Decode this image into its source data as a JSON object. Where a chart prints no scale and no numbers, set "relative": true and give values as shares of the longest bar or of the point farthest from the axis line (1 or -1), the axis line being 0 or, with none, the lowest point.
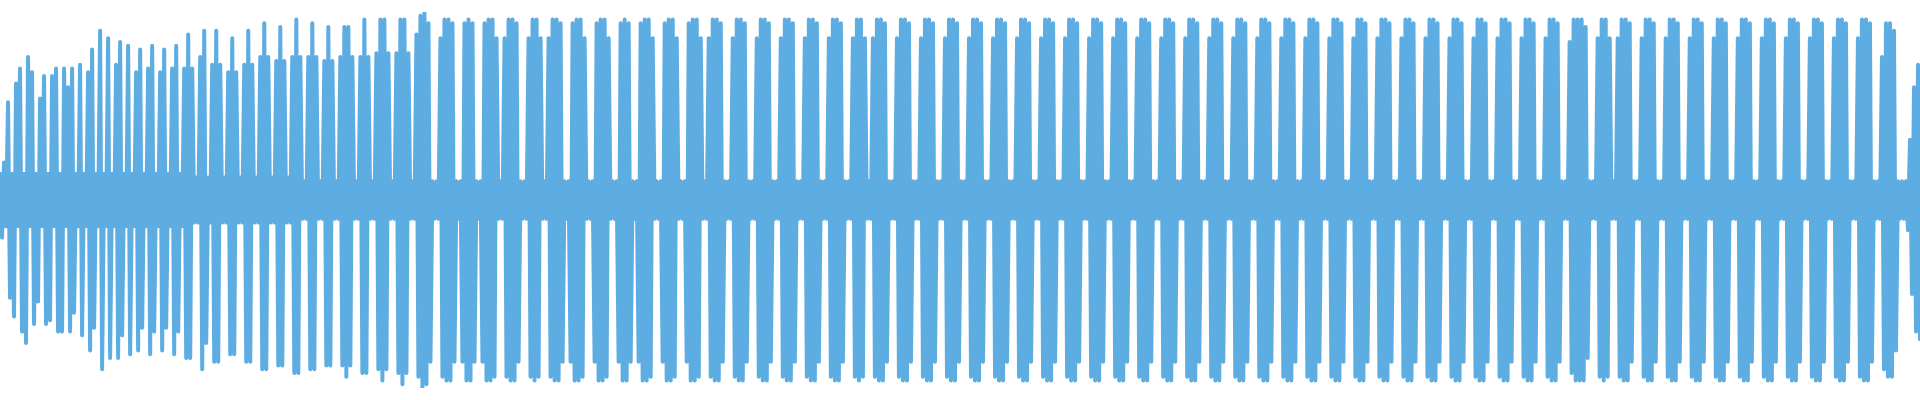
{
  "chart_data": {
    "type": "line",
    "relative": true,
    "color": "#5dade2",
    "categories": [
      null,
      null,
      null,
      null,
      null,
      null,
      null,
      null,
      null,
      null,
      null,
      null,
      null,
      null,
      null,
      null,
      null,
      null,
      null,
      null,
      null,
      null,
      null,
      null,
      null,
      null,
      null,
      null,
      null,
      null,
      null,
      null,
      null,
      null,
      null,
      null,
      null,
      null,
      null,
      null,
      null,
      null,
      null,
      null,
      null,
      null,
      null,
      null,
      null,
      null,
      null,
      null,
      null,
      null,
      null,
      null,
      null,
      null,
      null,
      null,
      null,
      null,
      null,
      null,
      null,
      null,
      null,
      null,
      null,
      null,
      null,
      null,
      null,
      null,
      null,
      null,
      null,
      null,
      null,
      null,
      null,
      null,
      null,
      null,
      null,
      null,
      null,
      null,
      null,
      null,
      null,
      null,
      null,
      null,
      null,
      null,
      null,
      null,
      null,
      null,
      null,
      null,
      null,
      null,
      null,
      null,
      null,
      null,
      null,
      null,
      null,
      null,
      null,
      null,
      null,
      null,
      null,
      null,
      null,
      null,
      null,
      null,
      null,
      null,
      null,
      null,
      null,
      null,
      null,
      null,
      null,
      null,
      null,
      null,
      null,
      null,
      null,
      null,
      null,
      null,
      null,
      null,
      null,
      null,
      null,
      null,
      null,
      null,
      null,
      null,
      null,
      null,
      null,
      null,
      null,
      null,
      null,
      null,
      null,
      null,
      null,
      null,
      null,
      null,
      null,
      null,
      null,
      null,
      null,
      null,
      null,
      null,
      null,
      null,
      null,
      null,
      null,
      null,
      null,
      null,
      null,
      null,
      null,
      null,
      null,
      null,
      null,
      null,
      null,
      null,
      null,
      null,
      null,
      null,
      null,
      null,
      null,
      null,
      null,
      null,
      null,
      null,
      null,
      null,
      null,
      null,
      null,
      null,
      null,
      null,
      null,
      null,
      null,
      null,
      null,
      null,
      null,
      null,
      null,
      null,
      null,
      null,
      null,
      null,
      null,
      null,
      null,
      null,
      null,
      null,
      null,
      null,
      null,
      null,
      null,
      null,
      null,
      null,
      null,
      null,
      null,
      null,
      null,
      null,
      null,
      null,
      null,
      null,
      null,
      null,
      null,
      null,
      null,
      null,
      null,
      null,
      null,
      null,
      null,
      null,
      null,
      null,
      null,
      null,
      null,
      null,
      null,
      null,
      null,
      null,
      null,
      null,
      null,
      null,
      null,
      null,
      null,
      null,
      null,
      null,
      null,
      null,
      null,
      null,
      null,
      null,
      null,
      null,
      null,
      null,
      null,
      null,
      null,
      null,
      null,
      null,
      null,
      null,
      null,
      null,
      null,
      null,
      null,
      null,
      null,
      null,
      null,
      null,
      null,
      null,
      null,
      null,
      null,
      null,
      null,
      null,
      null,
      null,
      null,
      null,
      null,
      null,
      null,
      null,
      null,
      null,
      null,
      null,
      null,
      null,
      null,
      null,
      null,
      null,
      null,
      null,
      null,
      null,
      null,
      null,
      null,
      null,
      null,
      null,
      null,
      null,
      null,
      null,
      null,
      null,
      null,
      null,
      null,
      null,
      null,
      null,
      null,
      null,
      null,
      null,
      null,
      null,
      null,
      null,
      null,
      null,
      null,
      null,
      null,
      null,
      null,
      null,
      null,
      null,
      null,
      null,
      null,
      null,
      null,
      null,
      null,
      null,
      null,
      null,
      null,
      null,
      null,
      null,
      null,
      null,
      null,
      null,
      null,
      null,
      null,
      null,
      null,
      null,
      null,
      null,
      null,
      null,
      null,
      null,
      null,
      null,
      null,
      null,
      null,
      null,
      null,
      null,
      null,
      null,
      null,
      null,
      null,
      null,
      null,
      null,
      null,
      null,
      null,
      null,
      null,
      null,
      null,
      null,
      null,
      null,
      null,
      null,
      null,
      null,
      null,
      null,
      null,
      null,
      null,
      null,
      null,
      null,
      null,
      null,
      null,
      null,
      null,
      null,
      null,
      null,
      null,
      null,
      null,
      null,
      null,
      null,
      null,
      null,
      null,
      null,
      null,
      null,
      null,
      null,
      null,
      null,
      null,
      null,
      null,
      null,
      null,
      null,
      null,
      null,
      null,
      null,
      null,
      null,
      null,
      null,
      null,
      null,
      null,
      null,
      null,
      null,
      null,
      null,
      null,
      null,
      null,
      null,
      null,
      null,
      null,
      null,
      null,
      null,
      null,
      null,
      null,
      null,
      null,
      null,
      null,
      null,
      null,
      null,
      null,
      null,
      null,
      null,
      null,
      null,
      null,
      null,
      null,
      null,
      null,
      null,
      null,
      null,
      null,
      null,
      null,
      null,
      null,
      null,
      null,
      null,
      null,
      null,
      null,
      null,
      null,
      null,
      null,
      null,
      null,
      null,
      null,
      null,
      null,
      null,
      null,
      null,
      null,
      null,
      null,
      null,
      null,
      null,
      null,
      null,
      null,
      null,
      null,
      null,
      null,
      null,
      null,
      null,
      null,
      null,
      null,
      null,
      null,
      null,
      null,
      null,
      null,
      null,
      null,
      null,
      null,
      null,
      null,
      null,
      null,
      null,
      null,
      null,
      null,
      null,
      null,
      null,
      null,
      null,
      null,
      null,
      null,
      null,
      null,
      null,
      null,
      null,
      null,
      null,
      null,
      null,
      null,
      null,
      null,
      null,
      null,
      null,
      null,
      null,
      null,
      null,
      null,
      null,
      null,
      null,
      null,
      null,
      null,
      null,
      null,
      null,
      null,
      null,
      null,
      null,
      null,
      null,
      null,
      null,
      null,
      null,
      null,
      null,
      null,
      null,
      null,
      null,
      null,
      null,
      null,
      null,
      null,
      null,
      null,
      null,
      null,
      null,
      null,
      null,
      null,
      null,
      null,
      null,
      null,
      null,
      null,
      null,
      null,
      null,
      null,
      null,
      null,
      null,
      null,
      null,
      null,
      null,
      null,
      null,
      null,
      null,
      null,
      null,
      null,
      null,
      null,
      null,
      null,
      null,
      null,
      null,
      null,
      null,
      null,
      null,
      null,
      null,
      null,
      null,
      null,
      null,
      null,
      null,
      null,
      null,
      null,
      null,
      null,
      null,
      null,
      null,
      null,
      null,
      null,
      null,
      null,
      null,
      null,
      null,
      null,
      null,
      null,
      null,
      null,
      null,
      null,
      null,
      null,
      null,
      null,
      null,
      null,
      null,
      null,
      null,
      null,
      null,
      null,
      null,
      null,
      null,
      null,
      null,
      null,
      null,
      null,
      null,
      null,
      null,
      null,
      null,
      null,
      null,
      null,
      null,
      null,
      null,
      null,
      null,
      null,
      null,
      null,
      null,
      null,
      null,
      null,
      null,
      null,
      null,
      null,
      null,
      null,
      null,
      null,
      null,
      null,
      null,
      null,
      null,
      null,
      null,
      null,
      null,
      null,
      null,
      null,
      null,
      null,
      null,
      null,
      null,
      null,
      null,
      null,
      null,
      null,
      null,
      null,
      null,
      null,
      null,
      null,
      null,
      null,
      null,
      null,
      null,
      null,
      null,
      null,
      null,
      null,
      null,
      null,
      null,
      null,
      null,
      null,
      null,
      null,
      null,
      null,
      null,
      null,
      null,
      null,
      null,
      null,
      null,
      null,
      null,
      null,
      null,
      null,
      null,
      null,
      null,
      null,
      null,
      null,
      null,
      null,
      null,
      null,
      null,
      null,
      null,
      null,
      null,
      null,
      null,
      null,
      null,
      null,
      null,
      null,
      null,
      null,
      null,
      null,
      null,
      null,
      null,
      null,
      null,
      null,
      null,
      null,
      null,
      null,
      null,
      null,
      null,
      null,
      null,
      null,
      null,
      null,
      null,
      null,
      null,
      null,
      null,
      null,
      null,
      null,
      null,
      null,
      null,
      null,
      null,
      null,
      null,
      null,
      null,
      null,
      null,
      null,
      null,
      null,
      null,
      null,
      null,
      null,
      null,
      null,
      null,
      null,
      null,
      null,
      null,
      null,
      null,
      null,
      null,
      null,
      null,
      null,
      null,
      null,
      null,
      null,
      null,
      null,
      null,
      null,
      null,
      null,
      null,
      null,
      null,
      null,
      null,
      null,
      null,
      null,
      null,
      null,
      null,
      null,
      null,
      null,
      null,
      null,
      null,
      null,
      null,
      null,
      null,
      null,
      null,
      null,
      null,
      null,
      null,
      null,
      null,
      null,
      null,
      null,
      null,
      null,
      null,
      null,
      null,
      null,
      null,
      null,
      null,
      null,
      null
    ],
    "values": [
      0.57,
      0.4,
      0.6,
      0.43,
      0.76,
      0.24,
      0.57,
      0.19,
      0.81,
      0.43,
      0.85,
      0.15,
      0.57,
      0.12,
      0.88,
      0.43,
      0.84,
      0.17,
      0.57,
      0.23,
      0.77,
      0.43,
      0.83,
      0.17,
      0.57,
      0.18,
      0.83,
      0.43,
      0.85,
      0.15,
      0.57,
      0.15,
      0.85,
      0.43,
      0.8,
      0.15,
      0.85,
      0.2,
      0.57,
      0.43,
      0.86,
      0.14,
      0.57,
      0.43,
      0.84,
      0.1,
      0.9,
      0.16,
      0.57,
      0.43,
      0.95,
      0.05,
      0.57,
      0.43,
      0.93,
      0.08,
      0.57,
      0.43,
      0.86,
      0.08,
      0.92,
      0.14,
      0.57,
      0.43,
      0.91,
      0.09,
      0.57,
      0.43,
      0.84,
      0.1,
      0.9,
      0.16,
      0.57,
      0.43,
      0.85,
      0.09,
      0.91,
      0.15,
      0.57,
      0.43,
      0.84,
      0.1,
      0.9,
      0.16,
      0.57,
      0.43,
      0.85,
      0.09,
      0.91,
      0.15,
      0.57,
      0.43,
      0.85,
      0.08,
      0.94,
      0.08,
      0.85,
      0.44,
      0.56,
      0.44,
      0.88,
      0.05,
      0.95,
      0.12,
      0.56,
      0.44,
      0.86,
      0.07,
      0.95,
      0.07,
      0.86,
      0.44,
      0.56,
      0.44,
      0.84,
      0.09,
      0.93,
      0.09,
      0.84,
      0.44,
      0.56,
      0.44,
      0.86,
      0.07,
      0.95,
      0.07,
      0.86,
      0.44,
      0.56,
      0.44,
      0.88,
      0.05,
      0.97,
      0.05,
      0.88,
      0.44,
      0.56,
      0.44,
      0.87,
      0.06,
      0.96,
      0.06,
      0.87,
      0.44,
      0.56,
      0.44,
      0.88,
      0.04,
      0.98,
      0.04,
      0.88,
      0.45,
      0.55,
      0.45,
      0.88,
      0.05,
      0.97,
      0.05,
      0.88,
      0.45,
      0.55,
      0.45,
      0.87,
      0.06,
      0.96,
      0.06,
      0.87,
      0.45,
      0.55,
      0.45,
      0.88,
      0.06,
      0.96,
      0.03,
      0.96,
      0.06,
      0.88,
      0.45,
      0.55,
      0.45,
      0.88,
      0.04,
      0.98,
      0.04,
      0.88,
      0.45,
      0.55,
      0.45,
      0.89,
      0.05,
      0.98,
      0.02,
      0.98,
      0.05,
      0.89,
      0.45,
      0.55,
      0.45,
      0.89,
      0.04,
      0.98,
      0.01,
      0.98,
      0.04,
      0.89,
      0.45,
      0.55,
      0.45,
      0.94,
      0.03,
      0.99,
      0,
      1,
      0.01,
      0.97,
      0.07,
      0.55,
      0.45,
      0.55,
      0.45,
      0.93,
      0.03,
      0.98,
      0.02,
      0.98,
      0.02,
      0.97,
      0.07,
      0.55,
      0.45,
      0.55,
      0.07,
      0.97,
      0.02,
      0.98,
      0.02,
      0.97,
      0.07,
      0.55,
      0.45,
      0.55,
      0.07,
      0.97,
      0.02,
      0.98,
      0.02,
      0.98,
      0.03,
      0.93,
      0.45,
      0.55,
      0.45,
      0.93,
      0.03,
      0.98,
      0.02,
      0.98,
      0.02,
      0.97,
      0.07,
      0.55,
      0.45,
      0.55,
      0.45,
      0.93,
      0.03,
      0.98,
      0.02,
      0.98,
      0.03,
      0.93,
      0.45,
      0.55,
      0.45,
      0.93,
      0.03,
      0.98,
      0.02,
      0.98,
      0.02,
      0.97,
      0.07,
      0.55,
      0.45,
      0.55,
      0.07,
      0.97,
      0.02,
      0.98,
      0.02,
      0.98,
      0.03,
      0.93,
      0.45,
      0.55,
      0.45,
      0.55,
      0.07,
      0.97,
      0.02,
      0.98,
      0.02,
      0.98,
      0.03,
      0.93,
      0.45,
      0.55,
      0.45,
      0.55,
      0.07,
      0.97,
      0.02,
      0.98,
      0.02,
      0.97,
      0.07,
      0.55,
      0.45,
      0.55,
      0.07,
      0.97,
      0.02,
      0.98,
      0.02,
      0.98,
      0.03,
      0.93,
      0.45,
      0.55,
      0.45,
      0.55,
      0.07,
      0.97,
      0.02,
      0.98,
      0.02,
      0.98,
      0.03,
      0.93,
      0.45,
      0.55,
      0.45,
      0.55,
      0.07,
      0.97,
      0.02,
      0.98,
      0.02,
      0.98,
      0.03,
      0.93,
      0.45,
      0.55,
      0.45,
      0.93,
      0.03,
      0.98,
      0.02,
      0.98,
      0.02,
      0.97,
      0.07,
      0.55,
      0.45,
      0.55,
      0.45,
      0.93,
      0.03,
      0.98,
      0.02,
      0.98,
      0.02,
      0.97,
      0.07,
      0.55,
      0.45,
      0.55,
      0.45,
      0.93,
      0.03,
      0.98,
      0.02,
      0.98,
      0.02,
      0.97,
      0.07,
      0.55,
      0.45,
      0.55,
      0.45,
      0.93,
      0.03,
      0.98,
      0.02,
      0.98,
      0.02,
      0.97,
      0.07,
      0.55,
      0.45,
      0.55,
      0.45,
      0.93,
      0.03,
      0.98,
      0.02,
      0.98,
      0.02,
      0.97,
      0.07,
      0.55,
      0.45,
      0.55,
      0.45,
      0.93,
      0.03,
      0.98,
      0.02,
      0.98,
      0.02,
      0.97,
      0.07,
      0.55,
      0.45,
      0.55,
      0.45,
      0.93,
      0.03,
      0.98,
      0.02,
      0.98,
      0.03,
      0.93,
      0.45,
      0.55,
      0.45,
      0.93,
      0.03,
      0.98,
      0.02,
      0.98,
      0.02,
      0.97,
      0.07,
      0.55,
      0.45,
      0.55,
      0.45,
      0.93,
      0.03,
      0.98,
      0.02,
      0.98,
      0.02,
      0.97,
      0.07,
      0.55,
      0.45,
      0.55,
      0.45,
      0.93,
      0.03,
      0.98,
      0.02,
      0.98,
      0.02,
      0.97,
      0.07,
      0.55,
      0.45,
      0.55,
      0.45,
      0.93,
      0.03,
      0.98,
      0.02,
      0.98,
      0.02,
      0.97,
      0.07,
      0.55,
      0.45,
      0.55,
      0.45,
      0.93,
      0.03,
      0.98,
      0.02,
      0.98,
      0.02,
      0.97,
      0.07,
      0.55,
      0.45,
      0.55,
      0.45,
      0.93,
      0.03,
      0.98,
      0.02,
      0.98,
      0.02,
      0.97,
      0.07,
      0.55,
      0.45,
      0.55,
      0.45,
      0.93,
      0.03,
      0.98,
      0.02,
      0.98,
      0.02,
      0.97,
      0.07,
      0.55,
      0.45,
      0.55,
      0.45,
      0.93,
      0.03,
      0.98,
      0.02,
      0.98,
      0.02,
      0.97,
      0.07,
      0.55,
      0.45,
      0.55,
      0.45,
      0.93,
      0.03,
      0.98,
      0.02,
      0.98,
      0.02,
      0.97,
      0.07,
      0.55,
      0.45,
      0.55,
      0.45,
      0.93,
      0.03,
      0.98,
      0.02,
      0.98,
      0.02,
      0.97,
      0.07,
      0.55,
      0.45,
      0.55,
      0.45,
      0.93,
      0.03,
      0.98,
      0.02,
      0.98,
      0.02,
      0.97,
      0.07,
      0.55,
      0.45,
      0.55,
      0.45,
      0.93,
      0.03,
      0.98,
      0.02,
      0.98,
      0.02,
      0.97,
      0.07,
      0.55,
      0.45,
      0.55,
      0.45,
      0.93,
      0.03,
      0.98,
      0.02,
      0.98,
      0.02,
      0.97,
      0.07,
      0.55,
      0.45,
      0.55,
      0.45,
      0.93,
      0.03,
      0.98,
      0.02,
      0.98,
      0.02,
      0.97,
      0.07,
      0.55,
      0.45,
      0.55,
      0.45,
      0.93,
      0.03,
      0.98,
      0.02,
      0.98,
      0.02,
      0.97,
      0.07,
      0.55,
      0.45,
      0.55,
      0.45,
      0.93,
      0.03,
      0.98,
      0.02,
      0.98,
      0.02,
      0.97,
      0.07,
      0.55,
      0.45,
      0.55,
      0.45,
      0.93,
      0.03,
      0.98,
      0.02,
      0.98,
      0.02,
      0.97,
      0.07,
      0.55,
      0.45,
      0.55,
      0.45,
      0.93,
      0.03,
      0.98,
      0.02,
      0.98,
      0.02,
      0.97,
      0.07,
      0.55,
      0.45,
      0.55,
      0.45,
      0.93,
      0.03,
      0.98,
      0.02,
      0.98,
      0.02,
      0.97,
      0.07,
      0.55,
      0.45,
      0.55,
      0.45,
      0.93,
      0.03,
      0.98,
      0.02,
      0.98,
      0.02,
      0.97,
      0.07,
      0.55,
      0.45,
      0.55,
      0.45,
      0.93,
      0.03,
      0.98,
      0.02,
      0.98,
      0.02,
      0.97,
      0.07,
      0.55,
      0.45,
      0.55,
      0.45,
      0.93,
      0.03,
      0.98,
      0.02,
      0.98,
      0.02,
      0.97,
      0.07,
      0.55,
      0.45,
      0.55,
      0.45,
      0.93,
      0.03,
      0.98,
      0.02,
      0.98,
      0.02,
      0.97,
      0.07,
      0.55,
      0.45,
      0.55,
      0.45,
      0.93,
      0.03,
      0.98,
      0.02,
      0.98,
      0.02,
      0.97,
      0.07,
      0.55,
      0.45,
      0.55,
      0.45,
      0.93,
      0.03,
      0.98,
      0.02,
      0.98,
      0.02,
      0.97,
      0.07,
      0.55,
      0.45,
      0.55,
      0.45,
      0.93,
      0.03,
      0.98,
      0.02,
      0.98,
      0.02,
      0.97,
      0.07,
      0.55,
      0.45,
      0.55,
      0.45,
      0.93,
      0.03,
      0.98,
      0.02,
      0.98,
      0.02,
      0.97,
      0.07,
      0.55,
      0.45,
      0.55,
      0.45,
      0.93,
      0.03,
      0.98,
      0.02,
      0.98,
      0.02,
      0.97,
      0.07,
      0.55,
      0.45,
      0.55,
      0.45,
      0.93,
      0.03,
      0.98,
      0.02,
      0.98,
      0.02,
      0.97,
      0.07,
      0.55,
      0.45,
      0.55,
      0.45,
      0.92,
      0.04,
      0.98,
      0.02,
      0.98,
      0.02,
      0.98,
      0.02,
      0.96,
      0.08,
      0.55,
      0.45,
      0.55,
      0.45,
      0.93,
      0.03,
      0.98,
      0.02,
      0.98,
      0.03,
      0.93,
      0.45,
      0.55,
      0.45,
      0.93,
      0.03,
      0.98,
      0.02,
      0.98,
      0.02,
      0.97,
      0.07,
      0.55,
      0.45,
      0.55,
      0.45,
      0.93,
      0.03,
      0.98,
      0.02,
      0.98,
      0.02,
      0.97,
      0.07,
      0.55,
      0.45,
      0.55,
      0.45,
      0.93,
      0.03,
      0.98,
      0.02,
      0.98,
      0.02,
      0.97,
      0.07,
      0.55,
      0.45,
      0.55,
      0.45,
      0.93,
      0.03,
      0.98,
      0.02,
      0.98,
      0.02,
      0.97,
      0.07,
      0.55,
      0.45,
      0.55,
      0.45,
      0.93,
      0.03,
      0.98,
      0.02,
      0.98,
      0.02,
      0.97,
      0.07,
      0.55,
      0.45,
      0.55,
      0.45,
      0.93,
      0.03,
      0.98,
      0.02,
      0.98,
      0.02,
      0.97,
      0.07,
      0.55,
      0.45,
      0.55,
      0.45,
      0.93,
      0.03,
      0.98,
      0.02,
      0.98,
      0.02,
      0.97,
      0.07,
      0.55,
      0.45,
      0.55,
      0.45,
      0.93,
      0.03,
      0.98,
      0.02,
      0.98,
      0.02,
      0.97,
      0.07,
      0.55,
      0.45,
      0.55,
      0.45,
      0.93,
      0.03,
      0.98,
      0.02,
      0.98,
      0.02,
      0.97,
      0.07,
      0.55,
      0.45,
      0.55,
      0.45,
      0.93,
      0.03,
      0.98,
      0.02,
      0.98,
      0.02,
      0.97,
      0.07,
      0.55,
      0.45,
      0.55,
      0.45,
      0.93,
      0.03,
      0.98,
      0.02,
      0.98,
      0.02,
      0.97,
      0.07,
      0.55,
      0.45,
      0.55,
      0.45,
      0.88,
      0.05,
      0.97,
      0.03,
      0.97,
      0.03,
      0.95,
      0.1,
      0.55,
      0.45,
      0.55,
      0.45,
      0.55,
      0.42,
      0.66,
      0.25,
      0.8,
      0.15,
      0.86,
      0.13
    ]
  }
}
